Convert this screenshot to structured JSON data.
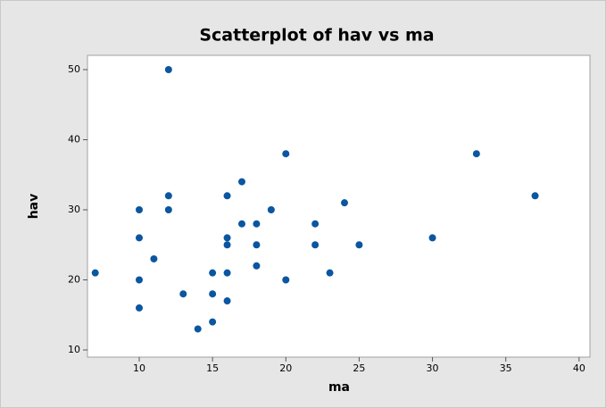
{
  "chart_data": {
    "type": "scatter",
    "title": "Scatterplot of hav vs ma",
    "x_label": "ma",
    "y_label": "hav",
    "x": [
      7,
      10,
      10,
      10,
      10,
      11,
      12,
      12,
      12,
      13,
      14,
      15,
      15,
      15,
      16,
      16,
      16,
      16,
      16,
      17,
      17,
      18,
      18,
      18,
      19,
      20,
      20,
      22,
      22,
      23,
      24,
      25,
      30,
      33,
      37
    ],
    "values": [
      21,
      30,
      26,
      20,
      16,
      23,
      50,
      32,
      30,
      18,
      13,
      21,
      18,
      14,
      32,
      26,
      25,
      21,
      17,
      34,
      28,
      28,
      25,
      22,
      30,
      38,
      20,
      28,
      25,
      21,
      31,
      25,
      26,
      38,
      32
    ],
    "color": "#0a56a0",
    "xlim": [
      6.47,
      40.74
    ],
    "ylim": [
      8.98,
      52.04
    ],
    "xticks": [
      10,
      15,
      20,
      25,
      30,
      35,
      40
    ],
    "yticks": [
      10,
      20,
      30,
      40,
      50
    ]
  }
}
